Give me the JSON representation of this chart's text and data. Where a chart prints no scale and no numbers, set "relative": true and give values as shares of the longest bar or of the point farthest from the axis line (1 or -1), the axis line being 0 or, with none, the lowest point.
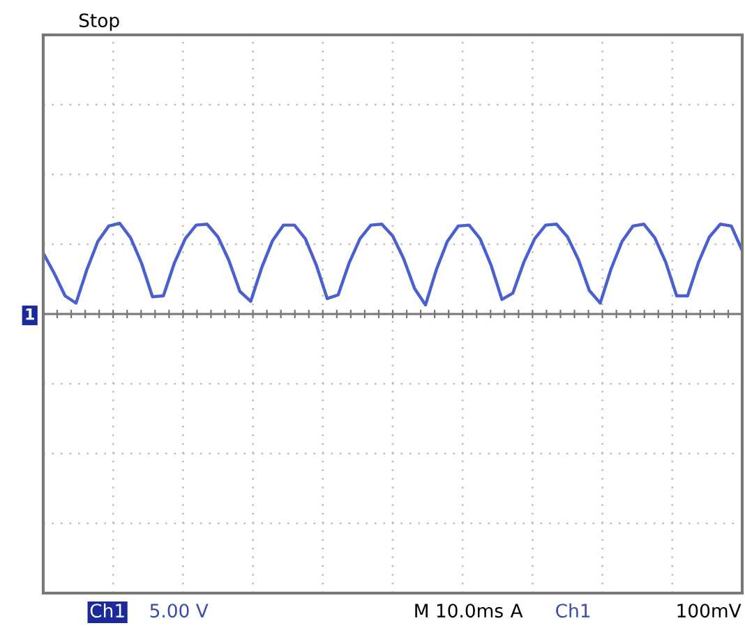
{
  "chart_data": {
    "type": "line",
    "relative": true,
    "grid": true,
    "line_style": "solid",
    "marker": "none",
    "categories": [
      null,
      null,
      null,
      null,
      null,
      null,
      null,
      null,
      null,
      null,
      null,
      null,
      null,
      null,
      null,
      null,
      null,
      null,
      null,
      null,
      null,
      null,
      null,
      null,
      null,
      null,
      null,
      null,
      null,
      null,
      null,
      null,
      null,
      null,
      null,
      null,
      null,
      null,
      null,
      null,
      null,
      null,
      null,
      null,
      null,
      null,
      null,
      null,
      null,
      null,
      null,
      null,
      null,
      null,
      null,
      null,
      null,
      null,
      null,
      null,
      null,
      null,
      null,
      null,
      null
    ],
    "series": [
      {
        "color": "#4a5fd0",
        "values": [
          0.67,
          0.45,
          0.2,
          0.12,
          0.49,
          0.8,
          0.97,
          1,
          0.84,
          0.56,
          0.19,
          0.2,
          0.56,
          0.83,
          0.98,
          0.99,
          0.85,
          0.59,
          0.25,
          0.14,
          0.51,
          0.81,
          0.98,
          0.98,
          0.83,
          0.54,
          0.17,
          0.21,
          0.56,
          0.83,
          0.98,
          0.99,
          0.86,
          0.61,
          0.28,
          0.1,
          0.49,
          0.8,
          0.97,
          0.98,
          0.83,
          0.54,
          0.16,
          0.23,
          0.57,
          0.83,
          0.98,
          0.99,
          0.85,
          0.6,
          0.26,
          0.12,
          0.5,
          0.8,
          0.97,
          0.99,
          0.84,
          0.57,
          0.2,
          0.2,
          0.57,
          0.85,
          0.99,
          0.97,
          0.7
        ]
      }
    ],
    "annotations": [
      "Stop",
      "Ch1",
      "5.00 V",
      "M 10.0ms",
      "A",
      "Ch1",
      "100mV",
      "1"
    ]
  }
}
